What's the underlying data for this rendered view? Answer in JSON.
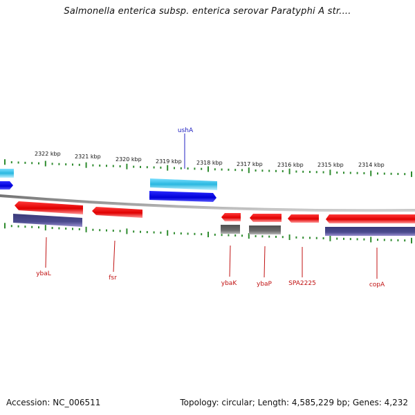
{
  "title": "Salmonella enterica subsp. enterica serovar Paratyphi A str....",
  "colors": {
    "backbone": "#8a8a8a",
    "ticks": "#2e8b2e",
    "forward_label": "#2020c0",
    "reverse_label": "#c01010"
  },
  "kbp_labels": [
    "2322 kbp",
    "2321 kbp",
    "2320 kbp",
    "2319 kbp",
    "2318 kbp",
    "2317 kbp",
    "2316 kbp",
    "2315 kbp",
    "2314 kbp"
  ],
  "genes": [
    {
      "name": "ushA",
      "color": "#2020c0"
    },
    {
      "name": "ybaL",
      "color": "#c01010"
    },
    {
      "name": "fsr",
      "color": "#c01010"
    },
    {
      "name": "ybaK",
      "color": "#c01010"
    },
    {
      "name": "ybaP",
      "color": "#c01010"
    },
    {
      "name": "SPA2225",
      "color": "#c01010"
    },
    {
      "name": "copA",
      "color": "#c01010"
    }
  ],
  "footer": {
    "accession": "Accession: NC_006511",
    "topology": "Topology: circular; Length: 4,585,229 bp; Genes: 4,232"
  }
}
